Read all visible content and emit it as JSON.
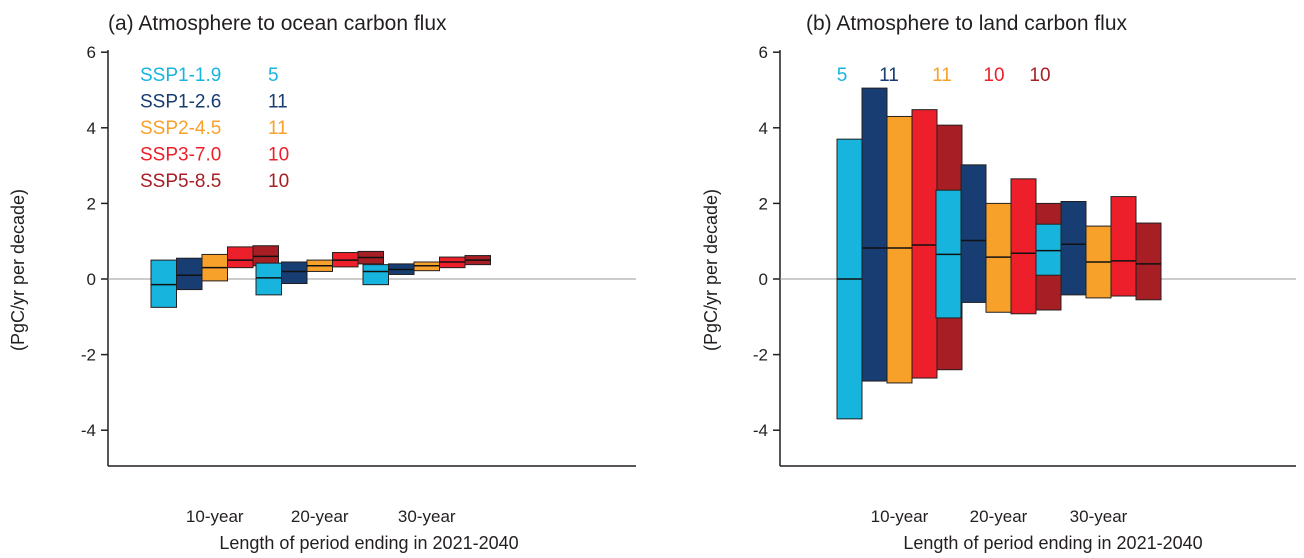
{
  "colors": {
    "SSP1-1.9": "#17b5de",
    "SSP1-2.6": "#173d72",
    "SSP2-4.5": "#f7a12b",
    "SSP3-7.0": "#ec1f2a",
    "SSP5-8.5": "#a71f24",
    "axis": "#231f20",
    "zero_line": "#999999"
  },
  "chart_data": [
    {
      "type": "bar",
      "title": "(a) Atmosphere to ocean carbon flux",
      "xlabel": "Length of period ending in 2021-2040",
      "ylabel": "(PgC/yr per decade)",
      "ylim": [
        -5,
        6
      ],
      "yticks": [
        "-4",
        "-2",
        "0",
        "2",
        "4",
        "6"
      ],
      "categories": [
        "10-year",
        "20-year",
        "30-year"
      ],
      "legend": {
        "placement": "top-left",
        "style": "labels with model counts",
        "entries": [
          {
            "label": "SSP1-1.9",
            "count": "5"
          },
          {
            "label": "SSP1-2.6",
            "count": "11"
          },
          {
            "label": "SSP2-4.5",
            "count": "11"
          },
          {
            "label": "SSP3-7.0",
            "count": "10"
          },
          {
            "label": "SSP5-8.5",
            "count": "10"
          }
        ]
      },
      "series": [
        {
          "name": "SSP1-1.9",
          "low": [
            -0.75,
            -0.42,
            -0.15
          ],
          "high": [
            0.5,
            0.42,
            0.38
          ],
          "median": [
            -0.15,
            0.03,
            0.2
          ]
        },
        {
          "name": "SSP1-2.6",
          "low": [
            -0.28,
            -0.12,
            0.12
          ],
          "high": [
            0.55,
            0.45,
            0.4
          ],
          "median": [
            0.1,
            0.2,
            0.25
          ]
        },
        {
          "name": "SSP2-4.5",
          "low": [
            -0.05,
            0.2,
            0.22
          ],
          "high": [
            0.65,
            0.5,
            0.45
          ],
          "median": [
            0.3,
            0.35,
            0.35
          ]
        },
        {
          "name": "SSP3-7.0",
          "low": [
            0.3,
            0.32,
            0.3
          ],
          "high": [
            0.85,
            0.7,
            0.58
          ],
          "median": [
            0.5,
            0.5,
            0.45
          ]
        },
        {
          "name": "SSP5-8.5",
          "low": [
            0.35,
            0.4,
            0.38
          ],
          "high": [
            0.88,
            0.73,
            0.62
          ],
          "median": [
            0.6,
            0.57,
            0.5
          ]
        }
      ]
    },
    {
      "type": "bar",
      "title": "(b) Atmosphere to land carbon flux",
      "xlabel": "Length of period ending in 2021-2040",
      "ylabel": "(PgC/yr per decade)",
      "ylim": [
        -5,
        6
      ],
      "yticks": [
        "-4",
        "-2",
        "0",
        "2",
        "4",
        "6"
      ],
      "categories": [
        "10-year",
        "20-year",
        "30-year"
      ],
      "legend": {
        "placement": "top",
        "style": "model counts only",
        "entries": [
          {
            "label": "SSP1-1.9",
            "count": "5"
          },
          {
            "label": "SSP1-2.6",
            "count": "11"
          },
          {
            "label": "SSP2-4.5",
            "count": "11"
          },
          {
            "label": "SSP3-7.0",
            "count": "10"
          },
          {
            "label": "SSP5-8.5",
            "count": "10"
          }
        ]
      },
      "series": [
        {
          "name": "SSP1-1.9",
          "low": [
            -3.7,
            -1.03,
            0.1
          ],
          "high": [
            3.7,
            2.35,
            1.45
          ],
          "median": [
            0.0,
            0.65,
            0.75
          ]
        },
        {
          "name": "SSP1-2.6",
          "low": [
            -2.7,
            -0.62,
            -0.42
          ],
          "high": [
            5.05,
            3.02,
            2.05
          ],
          "median": [
            0.82,
            1.02,
            0.92
          ]
        },
        {
          "name": "SSP2-4.5",
          "low": [
            -2.75,
            -0.88,
            -0.5
          ],
          "high": [
            4.3,
            2.0,
            1.4
          ],
          "median": [
            0.82,
            0.58,
            0.45
          ]
        },
        {
          "name": "SSP3-7.0",
          "low": [
            -2.62,
            -0.92,
            -0.45
          ],
          "high": [
            4.48,
            2.65,
            2.18
          ],
          "median": [
            0.9,
            0.68,
            0.48
          ]
        },
        {
          "name": "SSP5-8.5",
          "low": [
            -2.4,
            -0.82,
            -0.55
          ],
          "high": [
            4.07,
            2.0,
            1.48
          ],
          "median": [
            0.77,
            0.58,
            0.4
          ]
        }
      ]
    }
  ]
}
